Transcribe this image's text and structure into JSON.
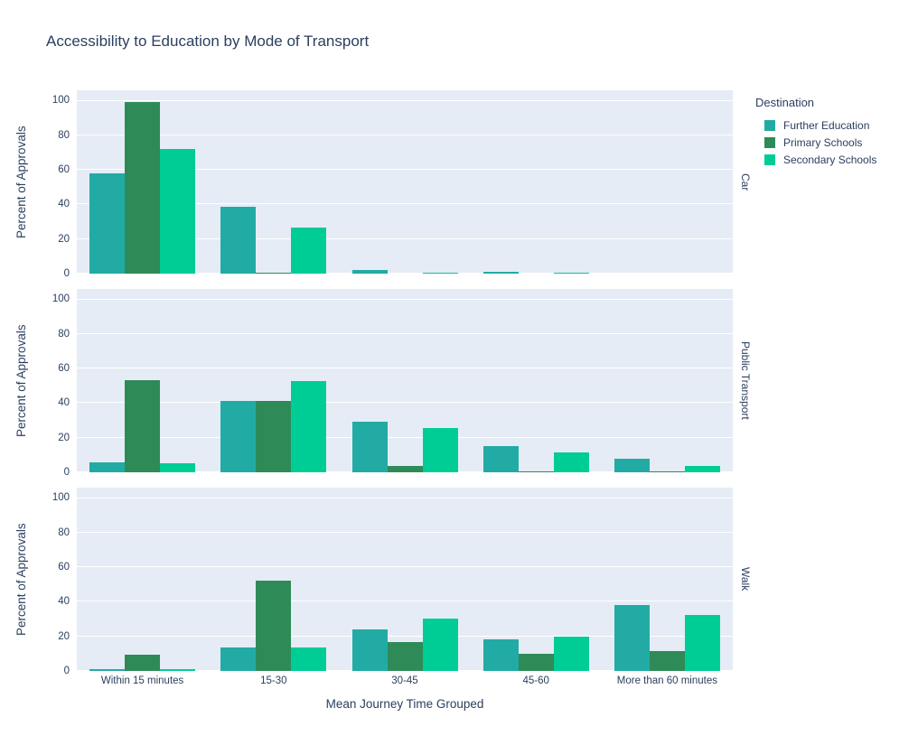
{
  "title": "Accessibility to Education by Mode of Transport",
  "legend": {
    "title": "Destination",
    "items": [
      {
        "label": "Further Education",
        "color": "#22ABA4"
      },
      {
        "label": "Primary Schools",
        "color": "#2E8B57"
      },
      {
        "label": "Secondary Schools",
        "color": "#00CC96"
      }
    ]
  },
  "colors": {
    "panel_background": "#E5ECF6",
    "grid": "#ffffff",
    "text": "#2a3f5f"
  },
  "chart_data": {
    "type": "bar",
    "title": "Accessibility to Education by Mode of Transport",
    "xlabel": "Mean Journey Time Grouped",
    "ylabel": "Percent of Approvals",
    "categories": [
      "Within 15 minutes",
      "15-30",
      "30-45",
      "45-60",
      "More than 60 minutes"
    ],
    "yticks": [
      0,
      20,
      40,
      60,
      80,
      100
    ],
    "ylim": [
      0,
      106
    ],
    "grid": "horizontal",
    "legend_position": "right",
    "facet_row_field": "Mode of Transport",
    "facets": [
      {
        "name": "Car",
        "series": [
          {
            "name": "Further Education",
            "color": "#22ABA4",
            "values": [
              58,
              38.5,
              2,
              0.8,
              0
            ]
          },
          {
            "name": "Primary Schools",
            "color": "#2E8B57",
            "values": [
              99,
              0.3,
              0,
              0,
              0
            ]
          },
          {
            "name": "Secondary Schools",
            "color": "#00CC96",
            "values": [
              72,
              26.5,
              0.7,
              0.3,
              0
            ]
          }
        ]
      },
      {
        "name": "Public Transport",
        "series": [
          {
            "name": "Further Education",
            "color": "#22ABA4",
            "values": [
              5.5,
              41,
              29,
              15,
              8
            ]
          },
          {
            "name": "Primary Schools",
            "color": "#2E8B57",
            "values": [
              53.5,
              41,
              3.5,
              0.3,
              0.2
            ]
          },
          {
            "name": "Secondary Schools",
            "color": "#00CC96",
            "values": [
              5,
              52.5,
              25.5,
              11.5,
              3.5
            ]
          }
        ]
      },
      {
        "name": "Walk",
        "series": [
          {
            "name": "Further Education",
            "color": "#22ABA4",
            "values": [
              1,
              13.5,
              24,
              18.5,
              38
            ]
          },
          {
            "name": "Primary Schools",
            "color": "#2E8B57",
            "values": [
              9.5,
              52,
              16.5,
              10,
              11.5
            ]
          },
          {
            "name": "Secondary Schools",
            "color": "#00CC96",
            "values": [
              1,
              13.5,
              30.5,
              20,
              32.5
            ]
          }
        ]
      }
    ]
  }
}
